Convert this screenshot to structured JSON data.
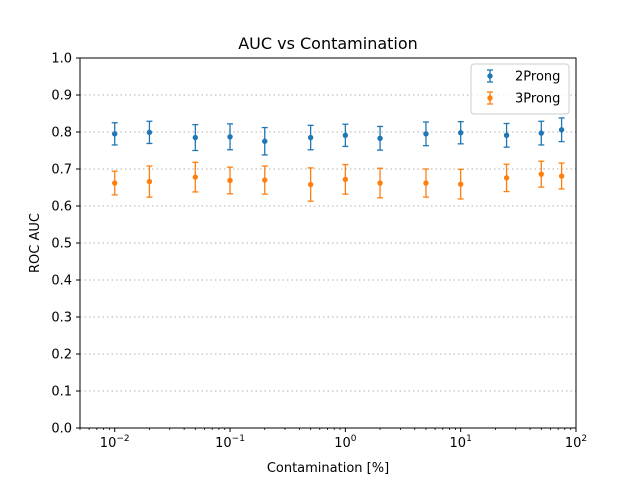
{
  "chart_data": {
    "type": "scatter",
    "title": "AUC vs Contamination",
    "xlabel": "Contamination [%]",
    "ylabel": "ROC AUC",
    "xscale": "log",
    "xlim": [
      0.005,
      100
    ],
    "ylim": [
      0.0,
      1.0
    ],
    "grid": "y-dotted",
    "legend_position": "top-right",
    "x_ticks": [
      {
        "value": 0.01,
        "base": "10",
        "exp": "−2"
      },
      {
        "value": 0.1,
        "base": "10",
        "exp": "−1"
      },
      {
        "value": 1,
        "base": "10",
        "exp": "0"
      },
      {
        "value": 10,
        "base": "10",
        "exp": "1"
      },
      {
        "value": 100,
        "base": "10",
        "exp": "2"
      }
    ],
    "y_ticks": [
      "0.0",
      "0.1",
      "0.2",
      "0.3",
      "0.4",
      "0.5",
      "0.6",
      "0.7",
      "0.8",
      "0.9",
      "1.0"
    ],
    "x": [
      0.01,
      0.02,
      0.05,
      0.1,
      0.2,
      0.5,
      1,
      2,
      5,
      10,
      25,
      50,
      75
    ],
    "series": [
      {
        "name": "2Prong",
        "color": "#1f77b4",
        "y": [
          0.795,
          0.799,
          0.785,
          0.787,
          0.775,
          0.785,
          0.791,
          0.783,
          0.795,
          0.798,
          0.791,
          0.797,
          0.806
        ],
        "err": [
          0.03,
          0.03,
          0.035,
          0.035,
          0.037,
          0.033,
          0.03,
          0.032,
          0.032,
          0.03,
          0.032,
          0.032,
          0.032
        ]
      },
      {
        "name": "3Prong",
        "color": "#ff7f0e",
        "y": [
          0.662,
          0.666,
          0.678,
          0.669,
          0.67,
          0.658,
          0.672,
          0.662,
          0.662,
          0.659,
          0.676,
          0.686,
          0.681
        ],
        "err": [
          0.032,
          0.042,
          0.04,
          0.036,
          0.038,
          0.045,
          0.04,
          0.04,
          0.038,
          0.04,
          0.037,
          0.035,
          0.035
        ]
      }
    ]
  }
}
